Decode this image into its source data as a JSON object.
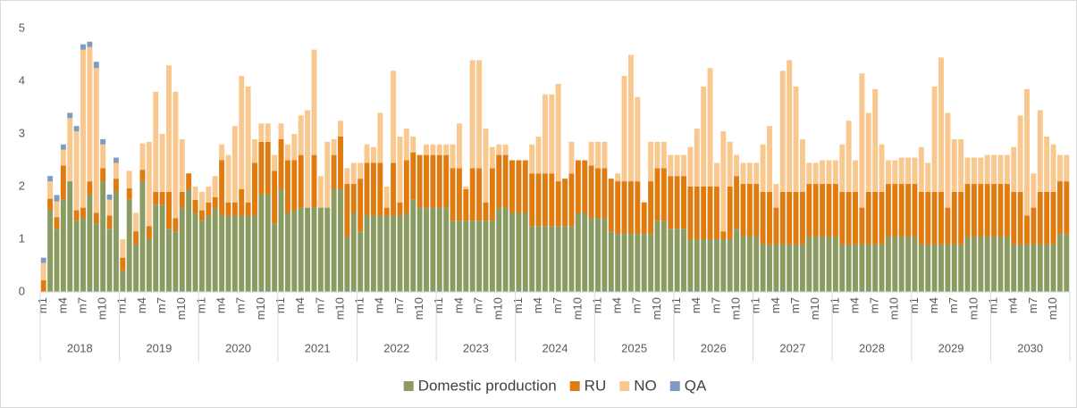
{
  "chart_data": {
    "type": "stacked_bar",
    "categories": [
      "m1",
      null,
      null,
      "m4",
      null,
      null,
      "m7",
      null,
      null,
      "m10",
      null,
      null,
      "m1",
      null,
      null,
      "m4",
      null,
      null,
      "m7",
      null,
      null,
      "m10",
      null,
      null,
      "m1",
      null,
      null,
      "m4",
      null,
      null,
      "m7",
      null,
      null,
      "m10",
      null,
      null,
      "m1",
      null,
      null,
      "m4",
      null,
      null,
      "m7",
      null,
      null,
      "m10",
      null,
      null,
      "m1",
      null,
      null,
      "m4",
      null,
      null,
      "m7",
      null,
      null,
      "m10",
      null,
      null,
      "m1",
      null,
      null,
      "m4",
      null,
      null,
      "m7",
      null,
      null,
      "m10",
      null,
      null,
      "m1",
      null,
      null,
      "m4",
      null,
      null,
      "m7",
      null,
      null,
      "m10",
      null,
      null,
      "m1",
      null,
      null,
      "m4",
      null,
      null,
      "m7",
      null,
      null,
      "m10",
      null,
      null,
      "m1",
      null,
      null,
      "m4",
      null,
      null,
      "m7",
      null,
      null,
      "m10",
      null,
      null,
      "m1",
      null,
      null,
      "m4",
      null,
      null,
      "m7",
      null,
      null,
      "m10",
      null,
      null,
      "m1",
      null,
      null,
      "m4",
      null,
      null,
      "m7",
      null,
      null,
      "m10",
      null,
      null,
      "m1",
      null,
      null,
      "m4",
      null,
      null,
      "m7",
      null,
      null,
      "m10",
      null,
      null,
      "m1",
      null,
      null,
      "m4",
      null,
      null,
      "m7",
      null,
      null,
      "m10",
      null,
      null
    ],
    "groups": [
      "2018",
      "2019",
      "2020",
      "2021",
      "2022",
      "2023",
      "2024",
      "2025",
      "2026",
      "2027",
      "2028",
      "2029",
      "2030"
    ],
    "ylim": [
      0,
      5
    ],
    "yticks": [
      0,
      1,
      2,
      3,
      4,
      5
    ],
    "grid": false,
    "legend": "bottom",
    "series": [
      {
        "name": "Domestic production",
        "color": "#8a9c61",
        "values": [
          0,
          1.55,
          1.2,
          1.75,
          2.1,
          1.35,
          1.4,
          1.85,
          1.3,
          2.1,
          1.2,
          1.9,
          0.4,
          1.75,
          0.9,
          2.1,
          1.0,
          1.65,
          1.65,
          1.2,
          1.15,
          1.6,
          1.95,
          1.5,
          1.35,
          1.45,
          1.6,
          1.45,
          1.45,
          1.45,
          1.45,
          1.45,
          1.45,
          1.85,
          1.85,
          1.3,
          1.95,
          1.5,
          1.55,
          1.6,
          1.6,
          1.6,
          1.6,
          1.6,
          1.95,
          1.95,
          1.05,
          1.5,
          1.15,
          1.45,
          1.45,
          1.45,
          1.45,
          1.45,
          1.45,
          1.5,
          1.75,
          1.6,
          1.6,
          1.6,
          1.6,
          1.6,
          1.35,
          1.35,
          1.35,
          1.35,
          1.35,
          1.35,
          1.35,
          1.6,
          1.6,
          1.5,
          1.5,
          1.5,
          1.25,
          1.25,
          1.25,
          1.25,
          1.25,
          1.25,
          1.25,
          1.5,
          1.5,
          1.4,
          1.4,
          1.4,
          1.15,
          1.1,
          1.1,
          1.1,
          1.1,
          1.1,
          1.1,
          1.35,
          1.35,
          1.2,
          1.2,
          1.2,
          1.0,
          1.0,
          1.0,
          1.0,
          1.0,
          1.0,
          1.0,
          1.2,
          1.05,
          1.05,
          1.05,
          0.9,
          0.9,
          0.9,
          0.9,
          0.9,
          0.9,
          0.9,
          1.05,
          1.05,
          1.05,
          1.05,
          1.05,
          0.9,
          0.9,
          0.9,
          0.9,
          0.9,
          0.9,
          0.9,
          1.05,
          1.05,
          1.05,
          1.05,
          1.05,
          0.9,
          0.9,
          0.9,
          0.9,
          0.9,
          0.9,
          0.9,
          1.05,
          1.05,
          1.05,
          1.05,
          1.05,
          1.05,
          1.05,
          0.9,
          0.9,
          0.9,
          0.9,
          0.9,
          0.9,
          0.9,
          1.1,
          1.1
        ]
      },
      {
        "name": "RU",
        "color": "#e07b10",
        "values": [
          0.22,
          0.22,
          0.22,
          0.65,
          0,
          0.2,
          0.2,
          0.25,
          0.2,
          0.25,
          0.25,
          0.25,
          0.25,
          0.22,
          0.25,
          0.22,
          0.25,
          0.25,
          0.25,
          0.7,
          0.25,
          0.3,
          0.3,
          0.25,
          0.2,
          0.25,
          0.2,
          1.05,
          0.25,
          0.25,
          0.5,
          0.25,
          1.0,
          1.0,
          1.0,
          1.0,
          0.95,
          1.0,
          0.95,
          1.0,
          0,
          1.0,
          0,
          0,
          0.65,
          1.0,
          1.0,
          0.55,
          1.0,
          1.0,
          1.0,
          1.0,
          0.15,
          1.0,
          0.25,
          1.0,
          0.9,
          1.0,
          1.0,
          1.0,
          1.0,
          1.0,
          1.0,
          1.0,
          0.6,
          1.0,
          1.0,
          0.35,
          1.0,
          1.0,
          1.0,
          1.0,
          1.0,
          1.0,
          1.0,
          1.0,
          1.0,
          1.0,
          0.85,
          0.9,
          1.0,
          1.0,
          1.0,
          1.0,
          0.95,
          0.95,
          1.0,
          1.0,
          1.0,
          1.0,
          1.0,
          0.6,
          1.0,
          1.0,
          1.0,
          1.0,
          1.0,
          1.0,
          1.0,
          1.0,
          1.0,
          1.0,
          1.0,
          0.15,
          1.0,
          1.0,
          1.0,
          1.0,
          1.0,
          1.0,
          1.0,
          0.7,
          1.0,
          1.0,
          1.0,
          1.0,
          1.0,
          1.0,
          1.0,
          1.0,
          1.0,
          1.0,
          1.0,
          1.0,
          0.7,
          1.0,
          1.0,
          1.0,
          1.0,
          1.0,
          1.0,
          1.0,
          1.0,
          1.0,
          1.0,
          1.0,
          1.0,
          0.7,
          1.0,
          1.0,
          1.0,
          1.0,
          1.0,
          1.0,
          1.0,
          1.0,
          1.0,
          1.0,
          1.0,
          0.55,
          0.7,
          1.0,
          1.0,
          1.0,
          1.0,
          1.0
        ]
      },
      {
        "name": "NO",
        "color": "#f8c88e",
        "values": [
          0.33,
          0.33,
          0.3,
          0.3,
          1.2,
          1.5,
          3.0,
          2.55,
          2.75,
          0.45,
          0.3,
          0.3,
          0.35,
          0.33,
          0.35,
          0.5,
          1.6,
          1.9,
          1.1,
          2.4,
          2.4,
          1.0,
          0,
          0.25,
          0.35,
          0.3,
          0.4,
          0.3,
          0.9,
          1.45,
          2.15,
          2.2,
          0.45,
          0.35,
          0.35,
          0.3,
          0.3,
          0.3,
          0.5,
          0.75,
          1.85,
          2.0,
          0.6,
          1.25,
          0.3,
          0.3,
          0.3,
          0.4,
          0.3,
          0.35,
          0.3,
          0.95,
          0.4,
          1.75,
          1.25,
          0.6,
          0.3,
          0,
          0.2,
          0.2,
          0.2,
          0.2,
          0.45,
          0.85,
          0.05,
          2.05,
          2.05,
          1.4,
          0.4,
          0.2,
          0.2,
          0,
          0,
          0,
          0.55,
          0.7,
          1.5,
          1.5,
          1.85,
          0,
          0.6,
          0,
          0,
          0.45,
          0.5,
          0.5,
          0,
          0.15,
          2.0,
          2.4,
          1.6,
          0,
          0.75,
          0.5,
          0.5,
          0.4,
          0.4,
          0.4,
          0.75,
          1.1,
          1.9,
          2.25,
          0.45,
          1.9,
          0.85,
          0.4,
          0.4,
          0.4,
          0.4,
          0.9,
          1.25,
          0.45,
          2.3,
          2.5,
          2.0,
          1.0,
          0.4,
          0.4,
          0.45,
          0.45,
          0.45,
          0.9,
          1.35,
          0.6,
          2.55,
          1.5,
          1.95,
          0.9,
          0.45,
          0.45,
          0.5,
          0.5,
          0.5,
          0.85,
          0.55,
          2.0,
          2.55,
          1.8,
          1.0,
          1.0,
          0.5,
          0.5,
          0.5,
          0.55,
          0.55,
          0.55,
          0.55,
          0.85,
          1.45,
          2.4,
          0.65,
          1.55,
          1.05,
          0.9,
          0.5,
          0.5
        ]
      },
      {
        "name": "QA",
        "color": "#7f9bc2",
        "values": [
          0.1,
          0.1,
          0.12,
          0.1,
          0.1,
          0.1,
          0.1,
          0.1,
          0.12,
          0.1,
          0.1,
          0.1,
          0,
          0,
          0,
          0,
          0,
          0,
          0,
          0,
          0,
          0,
          0,
          0,
          0,
          0,
          0,
          0,
          0,
          0,
          0,
          0,
          0,
          0,
          0,
          0,
          0,
          0,
          0,
          0,
          0,
          0,
          0,
          0,
          0,
          0,
          0,
          0,
          0,
          0,
          0,
          0,
          0,
          0,
          0,
          0,
          0,
          0,
          0,
          0,
          0,
          0,
          0,
          0,
          0,
          0,
          0,
          0,
          0,
          0,
          0,
          0,
          0,
          0,
          0,
          0,
          0,
          0,
          0,
          0,
          0,
          0,
          0,
          0,
          0,
          0,
          0,
          0,
          0,
          0,
          0,
          0,
          0,
          0,
          0,
          0,
          0,
          0,
          0,
          0,
          0,
          0,
          0,
          0,
          0,
          0,
          0,
          0,
          0,
          0,
          0,
          0,
          0,
          0,
          0,
          0,
          0,
          0,
          0,
          0,
          0,
          0,
          0,
          0,
          0,
          0,
          0,
          0,
          0,
          0,
          0,
          0,
          0,
          0,
          0,
          0,
          0,
          0,
          0,
          0,
          0,
          0,
          0,
          0,
          0,
          0,
          0,
          0,
          0,
          0,
          0,
          0,
          0,
          0,
          0,
          0
        ]
      }
    ]
  }
}
